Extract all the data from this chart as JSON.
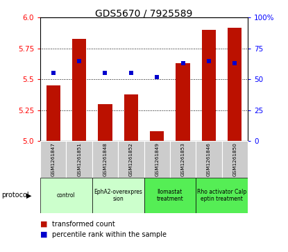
{
  "title": "GDS5670 / 7925589",
  "samples": [
    "GSM1261847",
    "GSM1261851",
    "GSM1261848",
    "GSM1261852",
    "GSM1261849",
    "GSM1261853",
    "GSM1261846",
    "GSM1261850"
  ],
  "bar_values": [
    5.45,
    5.83,
    5.3,
    5.38,
    5.08,
    5.63,
    5.9,
    5.92
  ],
  "percentile_values": [
    55,
    65,
    55,
    55,
    52,
    63,
    65,
    63
  ],
  "bar_color": "#bb1100",
  "blue_color": "#0000cc",
  "ylim_left": [
    5.0,
    6.0
  ],
  "ylim_right": [
    0,
    100
  ],
  "yticks_left": [
    5.0,
    5.25,
    5.5,
    5.75,
    6.0
  ],
  "yticks_right": [
    0,
    25,
    50,
    75,
    100
  ],
  "protocols": [
    {
      "label": "control",
      "span": [
        0,
        1
      ],
      "color": "#ccffcc"
    },
    {
      "label": "EphA2-overexpres\nsion",
      "span": [
        2,
        3
      ],
      "color": "#ccffcc"
    },
    {
      "label": "Ilomastat\ntreatment",
      "span": [
        4,
        5
      ],
      "color": "#55ee55"
    },
    {
      "label": "Rho activator Calp\neptin treatment",
      "span": [
        6,
        7
      ],
      "color": "#55ee55"
    }
  ],
  "bar_width": 0.55,
  "background_color": "#ffffff",
  "sample_bg_color": "#cccccc"
}
